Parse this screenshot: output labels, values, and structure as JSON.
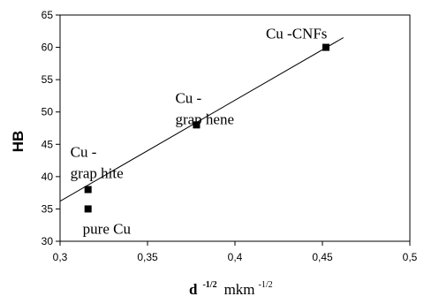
{
  "chart_data": {
    "type": "scatter",
    "xlabel": {
      "main": "d",
      "exp": "-1/2",
      "unit": "mkm",
      "unit_exp": "-1/2"
    },
    "ylabel": "HB",
    "xlim": [
      0.3,
      0.5
    ],
    "ylim": [
      30,
      65
    ],
    "x_ticks": [
      "0,3",
      "0,35",
      "0,4",
      "0,45",
      "0,5"
    ],
    "y_ticks": [
      "30",
      "35",
      "40",
      "45",
      "50",
      "55",
      "60",
      "65"
    ],
    "grid": false,
    "points": [
      {
        "x": 0.316,
        "y": 35,
        "label": [
          "pure Cu"
        ]
      },
      {
        "x": 0.316,
        "y": 38,
        "label": [
          "Cu -",
          "grap hite"
        ]
      },
      {
        "x": 0.378,
        "y": 48,
        "label": [
          "Cu -",
          "grap hene"
        ]
      },
      {
        "x": 0.452,
        "y": 60,
        "label": [
          "Cu -CNFs"
        ]
      }
    ],
    "trendline": {
      "x": [
        0.3,
        0.462
      ],
      "y": [
        36.2,
        61.5
      ]
    }
  }
}
